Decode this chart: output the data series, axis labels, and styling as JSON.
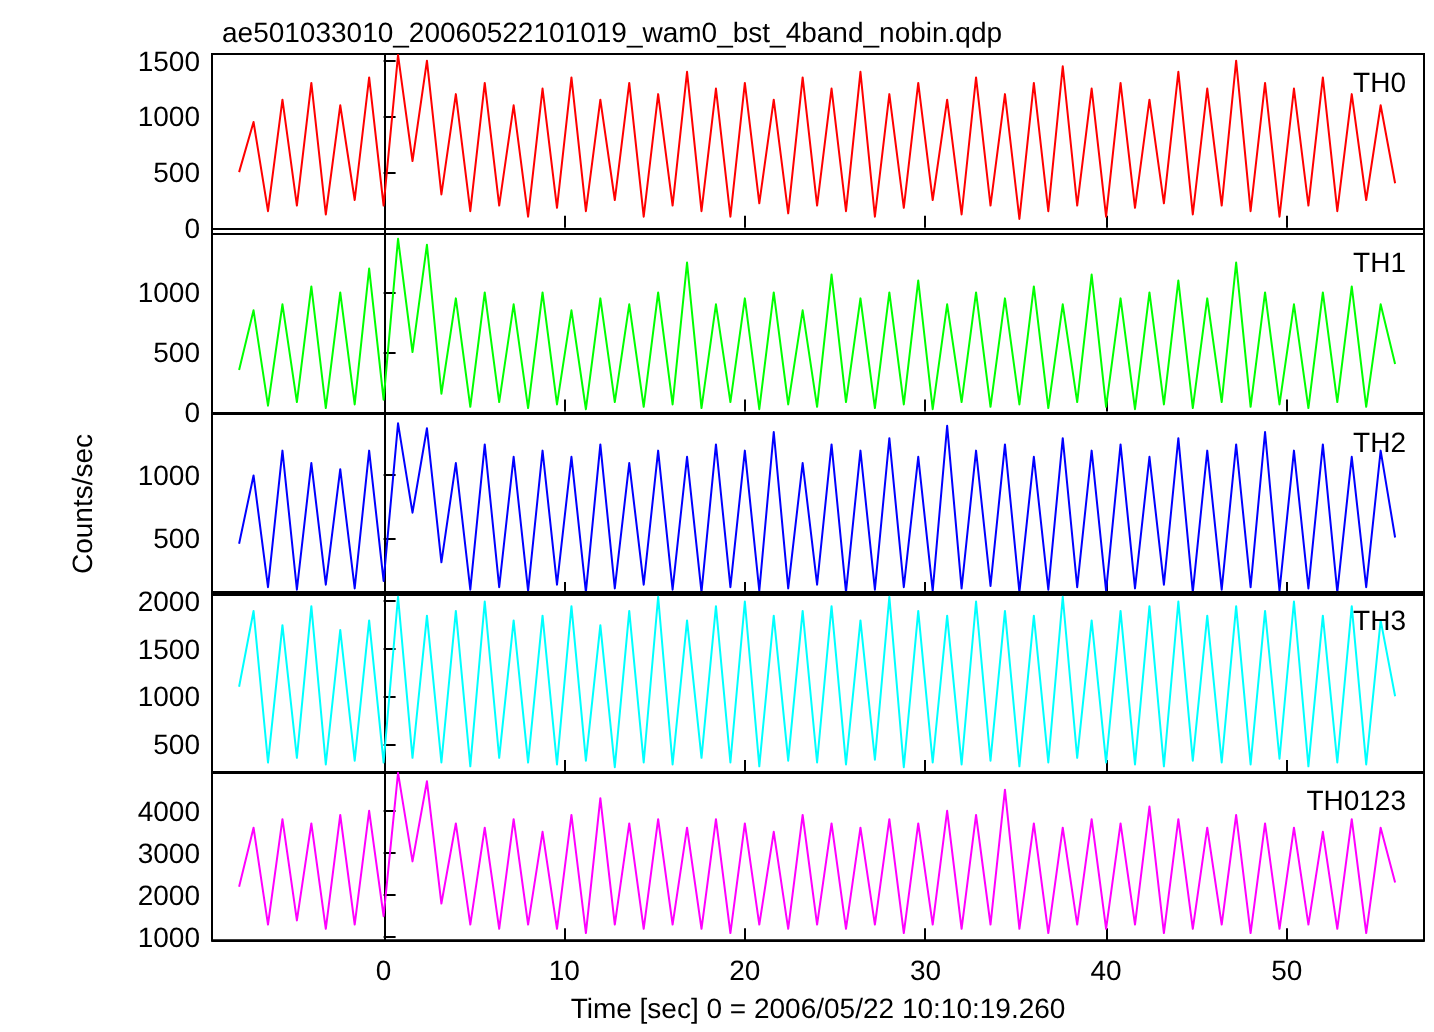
{
  "chart_data": [
    {
      "type": "line",
      "title": "ae501033010_20060522101019_wam0_bst_4band_nobin.qdp",
      "tick_labels": "y",
      "marker": "none",
      "line_style": "solid",
      "x": [
        -8,
        -7.2,
        -6.4,
        -5.6,
        -4.8,
        -4,
        -3.2,
        -2.4,
        -1.6,
        -0.8,
        0,
        0.8,
        1.6,
        2.4,
        3.2,
        4,
        4.8,
        5.6,
        6.4,
        7.2,
        8,
        8.8,
        9.6,
        10.4,
        11.2,
        12,
        12.8,
        13.6,
        14.4,
        15.2,
        16,
        16.8,
        17.6,
        18.4,
        19.2,
        20,
        20.8,
        21.6,
        22.4,
        23.2,
        24,
        24.8,
        25.6,
        26.4,
        27.2,
        28,
        28.8,
        29.6,
        30.4,
        31.2,
        32,
        32.8,
        33.6,
        34.4,
        35.2,
        36,
        36.8,
        37.6,
        38.4,
        39.2,
        40,
        40.8,
        41.6,
        42.4,
        43.2,
        44,
        44.8,
        45.6,
        46.4,
        47.2,
        48,
        48.8,
        49.6,
        50.4,
        51.2,
        52,
        52.8,
        53.6,
        54.4,
        55.2,
        56
      ],
      "xlim": [
        -9.5,
        57.6
      ],
      "xticks": [
        0,
        10,
        20,
        30,
        40,
        50
      ],
      "ylim": [
        -55,
        1560
      ],
      "yticks": [
        0,
        500,
        1000,
        1500
      ],
      "series": [
        {
          "name": "TH0",
          "color": "#ff0000",
          "values": [
            500,
            950,
            150,
            1150,
            200,
            1300,
            120,
            1100,
            250,
            1350,
            200,
            1550,
            600,
            1500,
            300,
            1200,
            150,
            1300,
            200,
            1100,
            100,
            1250,
            180,
            1350,
            150,
            1150,
            250,
            1300,
            100,
            1200,
            200,
            1400,
            150,
            1250,
            100,
            1300,
            220,
            1150,
            130,
            1350,
            200,
            1250,
            150,
            1400,
            100,
            1200,
            180,
            1300,
            250,
            1150,
            120,
            1350,
            200,
            1200,
            80,
            1300,
            150,
            1450,
            200,
            1250,
            100,
            1300,
            180,
            1150,
            220,
            1400,
            120,
            1250,
            200,
            1500,
            150,
            1300,
            100,
            1250,
            200,
            1350,
            150,
            1200,
            250,
            1100,
            400
          ]
        }
      ]
    },
    {
      "type": "line",
      "tick_labels": "y",
      "marker": "none",
      "line_style": "solid",
      "x": [
        -8,
        -7.2,
        -6.4,
        -5.6,
        -4.8,
        -4,
        -3.2,
        -2.4,
        -1.6,
        -0.8,
        0,
        0.8,
        1.6,
        2.4,
        3.2,
        4,
        4.8,
        5.6,
        6.4,
        7.2,
        8,
        8.8,
        9.6,
        10.4,
        11.2,
        12,
        12.8,
        13.6,
        14.4,
        15.2,
        16,
        16.8,
        17.6,
        18.4,
        19.2,
        20,
        20.8,
        21.6,
        22.4,
        23.2,
        24,
        24.8,
        25.6,
        26.4,
        27.2,
        28,
        28.8,
        29.6,
        30.4,
        31.2,
        32,
        32.8,
        33.6,
        34.4,
        35.2,
        36,
        36.8,
        37.6,
        38.4,
        39.2,
        40,
        40.8,
        41.6,
        42.4,
        43.2,
        44,
        44.8,
        45.6,
        46.4,
        47.2,
        48,
        48.8,
        49.6,
        50.4,
        51.2,
        52,
        52.8,
        53.6,
        54.4,
        55.2,
        56
      ],
      "xlim": [
        -9.5,
        57.6
      ],
      "xticks": [
        0,
        10,
        20,
        30,
        40,
        50
      ],
      "ylim": [
        -20,
        1490
      ],
      "yticks": [
        0,
        500,
        1000
      ],
      "series": [
        {
          "name": "TH1",
          "color": "#00ff00",
          "values": [
            350,
            850,
            50,
            900,
            80,
            1050,
            30,
            1000,
            60,
            1200,
            100,
            1450,
            500,
            1400,
            150,
            950,
            40,
            1000,
            80,
            900,
            30,
            1000,
            60,
            850,
            20,
            950,
            80,
            900,
            40,
            1000,
            60,
            1250,
            30,
            900,
            80,
            950,
            20,
            1000,
            60,
            850,
            40,
            1150,
            80,
            950,
            30,
            1000,
            60,
            1100,
            20,
            900,
            80,
            1000,
            40,
            950,
            60,
            1050,
            30,
            900,
            80,
            1150,
            40,
            950,
            20,
            1000,
            60,
            1100,
            30,
            950,
            80,
            1250,
            40,
            1000,
            60,
            900,
            30,
            1000,
            80,
            1050,
            40,
            900,
            400
          ]
        }
      ]
    },
    {
      "type": "line",
      "ylabel": "Counts/sec",
      "tick_labels": "y",
      "marker": "none",
      "line_style": "solid",
      "x": [
        -8,
        -7.2,
        -6.4,
        -5.6,
        -4.8,
        -4,
        -3.2,
        -2.4,
        -1.6,
        -0.8,
        0,
        0.8,
        1.6,
        2.4,
        3.2,
        4,
        4.8,
        5.6,
        6.4,
        7.2,
        8,
        8.8,
        9.6,
        10.4,
        11.2,
        12,
        12.8,
        13.6,
        14.4,
        15.2,
        16,
        16.8,
        17.6,
        18.4,
        19.2,
        20,
        20.8,
        21.6,
        22.4,
        23.2,
        24,
        24.8,
        25.6,
        26.4,
        27.2,
        28,
        28.8,
        29.6,
        30.4,
        31.2,
        32,
        32.8,
        33.6,
        34.4,
        35.2,
        36,
        36.8,
        37.6,
        38.4,
        39.2,
        40,
        40.8,
        41.6,
        42.4,
        43.2,
        44,
        44.8,
        45.6,
        46.4,
        47.2,
        48,
        48.8,
        49.6,
        50.4,
        51.2,
        52,
        52.8,
        53.6,
        54.4,
        55.2,
        56
      ],
      "xlim": [
        -9.5,
        57.6
      ],
      "xticks": [
        0,
        10,
        20,
        30,
        40,
        50
      ],
      "ylim": [
        45,
        1495
      ],
      "yticks": [
        500,
        1000
      ],
      "series": [
        {
          "name": "TH2",
          "color": "#0000ff",
          "values": [
            450,
            1000,
            100,
            1200,
            80,
            1100,
            120,
            1050,
            90,
            1200,
            150,
            1420,
            700,
            1380,
            300,
            1100,
            80,
            1250,
            100,
            1150,
            70,
            1200,
            120,
            1150,
            60,
            1250,
            90,
            1100,
            120,
            1200,
            80,
            1150,
            60,
            1250,
            100,
            1200,
            70,
            1350,
            90,
            1100,
            120,
            1250,
            60,
            1200,
            80,
            1300,
            100,
            1150,
            70,
            1400,
            90,
            1200,
            110,
            1250,
            60,
            1150,
            80,
            1300,
            100,
            1200,
            70,
            1250,
            90,
            1150,
            120,
            1300,
            60,
            1200,
            80,
            1250,
            100,
            1350,
            70,
            1200,
            90,
            1250,
            60,
            1150,
            100,
            1200,
            500
          ]
        }
      ]
    },
    {
      "type": "line",
      "tick_labels": "y",
      "marker": "none",
      "line_style": "solid",
      "x": [
        -8,
        -7.2,
        -6.4,
        -5.6,
        -4.8,
        -4,
        -3.2,
        -2.4,
        -1.6,
        -0.8,
        0,
        0.8,
        1.6,
        2.4,
        3.2,
        4,
        4.8,
        5.6,
        6.4,
        7.2,
        8,
        8.8,
        9.6,
        10.4,
        11.2,
        12,
        12.8,
        13.6,
        14.4,
        15.2,
        16,
        16.8,
        17.6,
        18.4,
        19.2,
        20,
        20.8,
        21.6,
        22.4,
        23.2,
        24,
        24.8,
        25.6,
        26.4,
        27.2,
        28,
        28.8,
        29.6,
        30.4,
        31.2,
        32,
        32.8,
        33.6,
        34.4,
        35.2,
        36,
        36.8,
        37.6,
        38.4,
        39.2,
        40,
        40.8,
        41.6,
        42.4,
        43.2,
        44,
        44.8,
        45.6,
        46.4,
        47.2,
        48,
        48.8,
        49.6,
        50.4,
        51.2,
        52,
        52.8,
        53.6,
        54.4,
        55.2,
        56
      ],
      "xlim": [
        -9.5,
        57.6
      ],
      "xticks": [
        0,
        10,
        20,
        30,
        40,
        50
      ],
      "ylim": [
        200,
        2100
      ],
      "yticks": [
        500,
        1000,
        1500,
        2000
      ],
      "series": [
        {
          "name": "TH3",
          "color": "#00ffff",
          "values": [
            1100,
            1900,
            300,
            1750,
            350,
            1950,
            280,
            1700,
            320,
            1800,
            300,
            2050,
            350,
            1850,
            300,
            1900,
            260,
            2000,
            350,
            1800,
            300,
            1850,
            280,
            1950,
            320,
            1750,
            250,
            1900,
            300,
            2050,
            280,
            1800,
            350,
            1950,
            300,
            2000,
            260,
            1850,
            320,
            1900,
            300,
            1950,
            280,
            1800,
            330,
            2050,
            250,
            1900,
            300,
            1850,
            280,
            2000,
            320,
            1900,
            260,
            1850,
            300,
            2050,
            350,
            1800,
            300,
            1900,
            280,
            1950,
            260,
            2000,
            320,
            1850,
            300,
            1950,
            280,
            1900,
            340,
            2000,
            260,
            1850,
            300,
            1950,
            280,
            1800,
            1000
          ]
        }
      ]
    },
    {
      "type": "line",
      "xlabel": "Time [sec] 0 = 2006/05/22 10:10:19.260",
      "marker": "none",
      "line_style": "solid",
      "x": [
        -8,
        -7.2,
        -6.4,
        -5.6,
        -4.8,
        -4,
        -3.2,
        -2.4,
        -1.6,
        -0.8,
        0,
        0.8,
        1.6,
        2.4,
        3.2,
        4,
        4.8,
        5.6,
        6.4,
        7.2,
        8,
        8.8,
        9.6,
        10.4,
        11.2,
        12,
        12.8,
        13.6,
        14.4,
        15.2,
        16,
        16.8,
        17.6,
        18.4,
        19.2,
        20,
        20.8,
        21.6,
        22.4,
        23.2,
        24,
        24.8,
        25.6,
        26.4,
        27.2,
        28,
        28.8,
        29.6,
        30.4,
        31.2,
        32,
        32.8,
        33.6,
        34.4,
        35.2,
        36,
        36.8,
        37.6,
        38.4,
        39.2,
        40,
        40.8,
        41.6,
        42.4,
        43.2,
        44,
        44.8,
        45.6,
        46.4,
        47.2,
        48,
        48.8,
        49.6,
        50.4,
        51.2,
        52,
        52.8,
        53.6,
        54.4,
        55.2,
        56
      ],
      "xlim": [
        -9.5,
        57.6
      ],
      "xticks": [
        0,
        10,
        20,
        30,
        40,
        50
      ],
      "ylim": [
        930,
        4920
      ],
      "yticks": [
        1000,
        2000,
        3000,
        4000
      ],
      "series": [
        {
          "name": "TH0123",
          "color": "#ff00ff",
          "values": [
            2200,
            3600,
            1300,
            3800,
            1400,
            3700,
            1200,
            3900,
            1300,
            4000,
            1500,
            4900,
            2800,
            4700,
            1800,
            3700,
            1300,
            3600,
            1200,
            3800,
            1300,
            3500,
            1200,
            3900,
            1100,
            4300,
            1300,
            3700,
            1200,
            3800,
            1300,
            3600,
            1200,
            3800,
            1100,
            3700,
            1300,
            3500,
            1200,
            3900,
            1300,
            3700,
            1200,
            3600,
            1300,
            3800,
            1100,
            3700,
            1300,
            4000,
            1200,
            3900,
            1300,
            4500,
            1200,
            3700,
            1100,
            3600,
            1300,
            3800,
            1200,
            3700,
            1300,
            4100,
            1100,
            3800,
            1200,
            3600,
            1300,
            3900,
            1100,
            3700,
            1200,
            3600,
            1300,
            3500,
            1200,
            3800,
            1100,
            3600,
            2300
          ]
        }
      ]
    }
  ]
}
